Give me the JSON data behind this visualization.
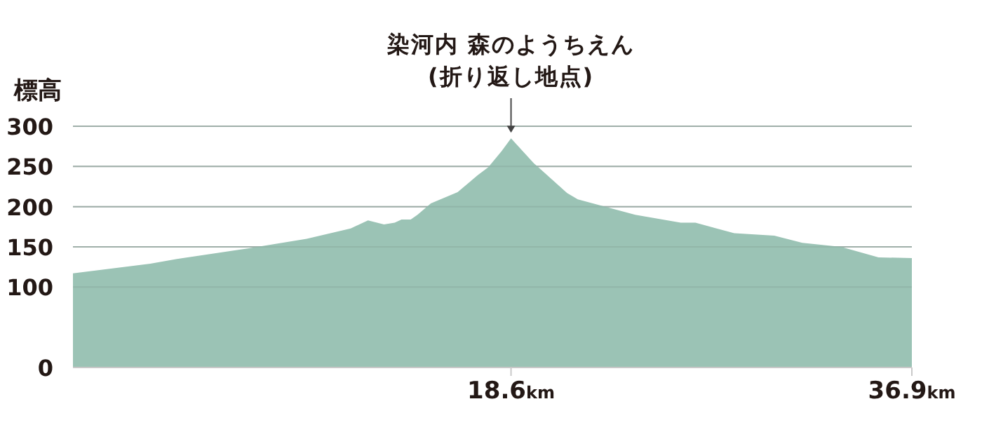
{
  "chart_data": {
    "type": "area",
    "ylabel": "標高",
    "x": [
      -1.4,
      2.13,
      3.35,
      6.58,
      9.27,
      11.28,
      12.07,
      12.8,
      13.29,
      13.6,
      14.02,
      14.33,
      14.94,
      16.16,
      16.77,
      17.07,
      17.56,
      18.17,
      18.6,
      19.64,
      21.16,
      21.65,
      24.27,
      26.35,
      27.02,
      28.79,
      30.62,
      31.9,
      33.67,
      35.38,
      36.9
    ],
    "values": [
      117,
      129,
      135,
      148,
      160,
      173,
      183,
      178,
      180,
      184,
      184,
      190,
      204,
      218,
      232,
      239,
      249,
      269,
      285,
      254,
      217,
      209,
      190,
      180,
      180,
      167,
      164,
      155,
      150,
      137,
      136
    ],
    "color": "#9bc3b5",
    "xlim": [
      -1.4,
      36.9
    ],
    "xticks": [
      {
        "value": 18.6,
        "label": "18.6km"
      },
      {
        "value": 36.9,
        "label": "36.9km"
      }
    ],
    "ylim": [
      0,
      300
    ],
    "yticks": [
      0,
      100,
      150,
      200,
      250,
      300
    ],
    "grid": "y",
    "annotations": [
      {
        "text": "染河内 森のようちえん\n(折り返し地点)",
        "x": 18.6,
        "y": 285
      }
    ]
  }
}
